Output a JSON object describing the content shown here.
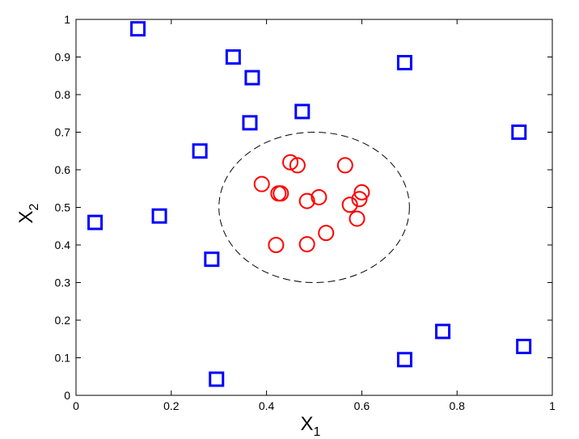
{
  "chart_data": {
    "type": "scatter",
    "title": "",
    "xlabel": "X",
    "xlabel_sub": "1",
    "ylabel": "X",
    "ylabel_sub": "2",
    "xlim": [
      0,
      1
    ],
    "ylim": [
      0,
      1
    ],
    "grid": false,
    "x_ticks": [
      0,
      0.2,
      0.4,
      0.6,
      0.8,
      1
    ],
    "x_tick_labels": [
      "0",
      "0.2",
      "0.4",
      "0.6",
      "0.8",
      "1"
    ],
    "y_ticks": [
      0,
      0.1,
      0.2,
      0.3,
      0.4,
      0.5,
      0.6,
      0.7,
      0.8,
      0.9,
      1
    ],
    "y_tick_labels": [
      "0",
      "0.1",
      "0.2",
      "0.3",
      "0.4",
      "0.5",
      "0.6",
      "0.7",
      "0.8",
      "0.9",
      "1"
    ],
    "series": [
      {
        "marker": "square",
        "color": "#0000ff",
        "points": [
          [
            0.13,
            0.975
          ],
          [
            0.33,
            0.9
          ],
          [
            0.37,
            0.845
          ],
          [
            0.69,
            0.885
          ],
          [
            0.475,
            0.755
          ],
          [
            0.365,
            0.725
          ],
          [
            0.93,
            0.7
          ],
          [
            0.26,
            0.65
          ],
          [
            0.04,
            0.46
          ],
          [
            0.175,
            0.477
          ],
          [
            0.285,
            0.362
          ],
          [
            0.77,
            0.17
          ],
          [
            0.94,
            0.13
          ],
          [
            0.69,
            0.095
          ],
          [
            0.295,
            0.043
          ]
        ]
      },
      {
        "marker": "circle",
        "color": "#ff0000",
        "points": [
          [
            0.45,
            0.62
          ],
          [
            0.465,
            0.612
          ],
          [
            0.565,
            0.612
          ],
          [
            0.39,
            0.562
          ],
          [
            0.425,
            0.537
          ],
          [
            0.43,
            0.537
          ],
          [
            0.6,
            0.54
          ],
          [
            0.595,
            0.522
          ],
          [
            0.51,
            0.527
          ],
          [
            0.485,
            0.517
          ],
          [
            0.575,
            0.507
          ],
          [
            0.59,
            0.47
          ],
          [
            0.42,
            0.4
          ],
          [
            0.485,
            0.402
          ],
          [
            0.525,
            0.432
          ]
        ]
      }
    ],
    "boundary": {
      "shape": "ellipse",
      "style": "dashed",
      "color": "#000000",
      "center": [
        0.5,
        0.5
      ],
      "radius_x": 0.2,
      "radius_y": 0.2
    }
  }
}
